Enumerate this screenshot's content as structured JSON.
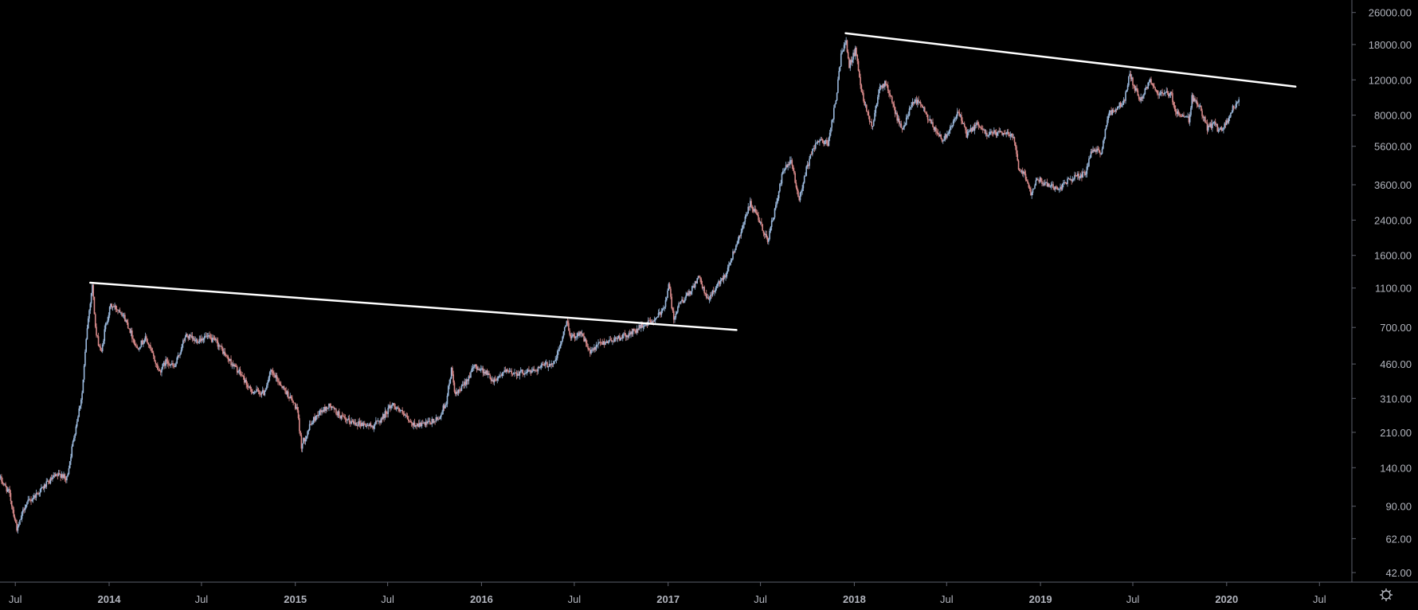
{
  "chart_data": {
    "type": "candlestick",
    "title": "",
    "xlabel": "",
    "ylabel": "",
    "y_scale": "log",
    "ylim": [
      38,
      30000
    ],
    "xlim": [
      "2013-06-01",
      "2020-09-01"
    ],
    "grid": false,
    "colors": {
      "background": "#000000",
      "up": "#9ab8dc",
      "down": "#d98a8a",
      "trendline": "#ffffff",
      "axis": "#5d606b",
      "tick_text": "#b2b5be"
    },
    "y_ticks": [
      {
        "value": 42,
        "label": "42.00"
      },
      {
        "value": 62,
        "label": "62.00"
      },
      {
        "value": 90,
        "label": "90.00"
      },
      {
        "value": 140,
        "label": "140.00"
      },
      {
        "value": 210,
        "label": "210.00"
      },
      {
        "value": 310,
        "label": "310.00"
      },
      {
        "value": 460,
        "label": "460.00"
      },
      {
        "value": 700,
        "label": "700.00"
      },
      {
        "value": 1100,
        "label": "1100.00"
      },
      {
        "value": 1600,
        "label": "1600.00"
      },
      {
        "value": 2400,
        "label": "2400.00"
      },
      {
        "value": 3600,
        "label": "3600.00"
      },
      {
        "value": 5600,
        "label": "5600.00"
      },
      {
        "value": 8000,
        "label": "8000.00"
      },
      {
        "value": 12000,
        "label": "12000.00"
      },
      {
        "value": 18000,
        "label": "18000.00"
      },
      {
        "value": 26000,
        "label": "26000.00"
      }
    ],
    "x_ticks": [
      {
        "date": "2013-07-01",
        "label": "Jul",
        "major": false
      },
      {
        "date": "2014-01-01",
        "label": "2014",
        "major": true
      },
      {
        "date": "2014-07-01",
        "label": "Jul",
        "major": false
      },
      {
        "date": "2015-01-01",
        "label": "2015",
        "major": true
      },
      {
        "date": "2015-07-01",
        "label": "Jul",
        "major": false
      },
      {
        "date": "2016-01-01",
        "label": "2016",
        "major": true
      },
      {
        "date": "2016-07-01",
        "label": "Jul",
        "major": false
      },
      {
        "date": "2017-01-01",
        "label": "2017",
        "major": true
      },
      {
        "date": "2017-07-01",
        "label": "Jul",
        "major": false
      },
      {
        "date": "2018-01-01",
        "label": "2018",
        "major": true
      },
      {
        "date": "2018-07-01",
        "label": "Jul",
        "major": false
      },
      {
        "date": "2019-01-01",
        "label": "2019",
        "major": true
      },
      {
        "date": "2019-07-01",
        "label": "Jul",
        "major": false
      },
      {
        "date": "2020-01-01",
        "label": "2020",
        "major": true
      },
      {
        "date": "2020-07-01",
        "label": "Jul",
        "major": false
      }
    ],
    "price_path": [
      [
        "2013-06-01",
        125
      ],
      [
        "2013-06-20",
        105
      ],
      [
        "2013-07-06",
        68
      ],
      [
        "2013-07-20",
        90
      ],
      [
        "2013-08-15",
        105
      ],
      [
        "2013-09-15",
        125
      ],
      [
        "2013-10-01",
        130
      ],
      [
        "2013-10-10",
        120
      ],
      [
        "2013-10-25",
        200
      ],
      [
        "2013-11-10",
        330
      ],
      [
        "2013-11-20",
        700
      ],
      [
        "2013-11-30",
        1150
      ],
      [
        "2013-12-07",
        650
      ],
      [
        "2013-12-18",
        520
      ],
      [
        "2013-12-25",
        700
      ],
      [
        "2014-01-05",
        900
      ],
      [
        "2014-01-25",
        850
      ],
      [
        "2014-02-10",
        700
      ],
      [
        "2014-02-25",
        550
      ],
      [
        "2014-03-15",
        620
      ],
      [
        "2014-04-10",
        420
      ],
      [
        "2014-04-25",
        480
      ],
      [
        "2014-05-10",
        440
      ],
      [
        "2014-06-01",
        640
      ],
      [
        "2014-06-20",
        600
      ],
      [
        "2014-07-10",
        630
      ],
      [
        "2014-08-01",
        590
      ],
      [
        "2014-08-20",
        500
      ],
      [
        "2014-09-20",
        400
      ],
      [
        "2014-10-05",
        340
      ],
      [
        "2014-11-01",
        330
      ],
      [
        "2014-11-15",
        420
      ],
      [
        "2014-12-01",
        375
      ],
      [
        "2014-12-20",
        320
      ],
      [
        "2015-01-05",
        275
      ],
      [
        "2015-01-14",
        180
      ],
      [
        "2015-02-01",
        230
      ],
      [
        "2015-02-15",
        260
      ],
      [
        "2015-03-10",
        285
      ],
      [
        "2015-04-10",
        240
      ],
      [
        "2015-05-01",
        235
      ],
      [
        "2015-06-01",
        225
      ],
      [
        "2015-06-20",
        245
      ],
      [
        "2015-07-10",
        290
      ],
      [
        "2015-07-20",
        280
      ],
      [
        "2015-08-18",
        230
      ],
      [
        "2015-09-15",
        230
      ],
      [
        "2015-10-10",
        245
      ],
      [
        "2015-10-25",
        300
      ],
      [
        "2015-11-04",
        430
      ],
      [
        "2015-11-12",
        320
      ],
      [
        "2015-11-25",
        350
      ],
      [
        "2015-12-20",
        450
      ],
      [
        "2016-01-10",
        420
      ],
      [
        "2016-01-25",
        380
      ],
      [
        "2016-02-15",
        420
      ],
      [
        "2016-03-10",
        415
      ],
      [
        "2016-04-10",
        425
      ],
      [
        "2016-05-01",
        450
      ],
      [
        "2016-05-25",
        470
      ],
      [
        "2016-06-05",
        580
      ],
      [
        "2016-06-18",
        760
      ],
      [
        "2016-06-25",
        620
      ],
      [
        "2016-07-15",
        665
      ],
      [
        "2016-08-02",
        520
      ],
      [
        "2016-08-20",
        580
      ],
      [
        "2016-09-15",
        610
      ],
      [
        "2016-10-15",
        640
      ],
      [
        "2016-11-15",
        720
      ],
      [
        "2016-12-10",
        770
      ],
      [
        "2016-12-25",
        890
      ],
      [
        "2017-01-04",
        1150
      ],
      [
        "2017-01-12",
        780
      ],
      [
        "2017-01-25",
        920
      ],
      [
        "2017-02-15",
        1050
      ],
      [
        "2017-03-02",
        1250
      ],
      [
        "2017-03-20",
        960
      ],
      [
        "2017-04-05",
        1100
      ],
      [
        "2017-04-25",
        1300
      ],
      [
        "2017-05-15",
        1800
      ],
      [
        "2017-06-01",
        2400
      ],
      [
        "2017-06-12",
        2900
      ],
      [
        "2017-06-25",
        2500
      ],
      [
        "2017-07-16",
        1900
      ],
      [
        "2017-08-01",
        2800
      ],
      [
        "2017-08-15",
        4200
      ],
      [
        "2017-09-01",
        4700
      ],
      [
        "2017-09-15",
        3000
      ],
      [
        "2017-10-01",
        4400
      ],
      [
        "2017-10-20",
        6000
      ],
      [
        "2017-11-12",
        5800
      ],
      [
        "2017-11-28",
        10000
      ],
      [
        "2017-12-07",
        16000
      ],
      [
        "2017-12-17",
        19500
      ],
      [
        "2017-12-22",
        14000
      ],
      [
        "2018-01-05",
        17000
      ],
      [
        "2018-01-16",
        10500
      ],
      [
        "2018-02-06",
        6900
      ],
      [
        "2018-02-20",
        11200
      ],
      [
        "2018-03-05",
        11500
      ],
      [
        "2018-03-25",
        8000
      ],
      [
        "2018-04-06",
        6600
      ],
      [
        "2018-04-25",
        9400
      ],
      [
        "2018-05-10",
        9300
      ],
      [
        "2018-05-30",
        7400
      ],
      [
        "2018-06-25",
        6000
      ],
      [
        "2018-07-25",
        8300
      ],
      [
        "2018-08-10",
        6400
      ],
      [
        "2018-09-01",
        7200
      ],
      [
        "2018-09-15",
        6500
      ],
      [
        "2018-10-15",
        6500
      ],
      [
        "2018-11-10",
        6400
      ],
      [
        "2018-11-20",
        4400
      ],
      [
        "2018-12-01",
        4100
      ],
      [
        "2018-12-15",
        3250
      ],
      [
        "2018-12-25",
        3900
      ],
      [
        "2019-01-15",
        3600
      ],
      [
        "2019-02-08",
        3450
      ],
      [
        "2019-03-01",
        3850
      ],
      [
        "2019-04-01",
        4100
      ],
      [
        "2019-04-10",
        5200
      ],
      [
        "2019-05-01",
        5300
      ],
      [
        "2019-05-15",
        8000
      ],
      [
        "2019-05-30",
        8700
      ],
      [
        "2019-06-15",
        9300
      ],
      [
        "2019-06-26",
        13000
      ],
      [
        "2019-07-05",
        11000
      ],
      [
        "2019-07-17",
        9600
      ],
      [
        "2019-08-06",
        12000
      ],
      [
        "2019-08-20",
        10200
      ],
      [
        "2019-09-15",
        10200
      ],
      [
        "2019-09-25",
        8300
      ],
      [
        "2019-10-20",
        7600
      ],
      [
        "2019-10-26",
        9800
      ],
      [
        "2019-11-10",
        8800
      ],
      [
        "2019-11-25",
        6900
      ],
      [
        "2019-12-10",
        7300
      ],
      [
        "2019-12-18",
        6600
      ],
      [
        "2020-01-01",
        7200
      ],
      [
        "2020-01-15",
        8800
      ],
      [
        "2020-01-25",
        9400
      ]
    ],
    "trendlines": [
      {
        "start": [
          "2013-11-25",
          1170
        ],
        "end": [
          "2017-05-15",
          680
        ]
      },
      {
        "start": [
          "2017-12-15",
          20500
        ],
        "end": [
          "2020-05-15",
          11100
        ]
      }
    ]
  }
}
